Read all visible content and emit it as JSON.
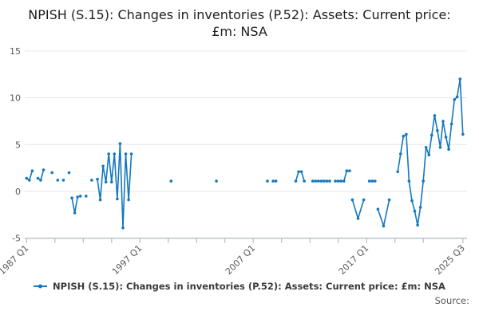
{
  "title": "NPISH (S.15): Changes in inventories (P.52): Assets: Current price: £m: NSA",
  "legend": {
    "series_label": "NPISH (S.15): Changes in inventories (P.52): Assets: Current price: £m: NSA"
  },
  "source_label": "Source:",
  "chart_data": {
    "type": "line",
    "title": "NPISH (S.15): Changes in inventories (P.52): Assets: Current price: £m: NSA",
    "xlabel": "",
    "ylabel": "",
    "unit": "£m",
    "x_start": "1987 Q1",
    "x_end": "2025 Q3",
    "ylim": [
      -5,
      15
    ],
    "yticks": [
      15,
      10,
      5,
      0,
      -5
    ],
    "xticks": [
      "1987 Q1",
      "1997 Q1",
      "2007 Q1",
      "2017 Q1",
      "2025 Q3"
    ],
    "grid": "horizontal",
    "legend_position": "bottom",
    "colors": {
      "series": "#1478BE",
      "grid": "#E6E6E6",
      "axis": "#B7C2CC",
      "tick_text": "#595959"
    },
    "segments": [
      {
        "points": [
          [
            "1987 Q1",
            1.4
          ],
          [
            "1987 Q2",
            1.2
          ],
          [
            "1987 Q3",
            2.2
          ]
        ]
      },
      {
        "points": [
          [
            "1988 Q1",
            1.4
          ],
          [
            "1988 Q2",
            1.2
          ],
          [
            "1988 Q3",
            2.3
          ]
        ]
      },
      {
        "points": [
          [
            "1989 Q2",
            2.0
          ]
        ]
      },
      {
        "points": [
          [
            "1989 Q4",
            1.2
          ]
        ]
      },
      {
        "points": [
          [
            "1990 Q2",
            1.2
          ]
        ]
      },
      {
        "points": [
          [
            "1990 Q4",
            2.0
          ]
        ]
      },
      {
        "points": [
          [
            "1991 Q1",
            -0.7
          ],
          [
            "1991 Q2",
            -2.3
          ],
          [
            "1991 Q3",
            -0.6
          ]
        ]
      },
      {
        "points": [
          [
            "1991 Q4",
            -0.5
          ]
        ]
      },
      {
        "points": [
          [
            "1992 Q2",
            -0.5
          ]
        ]
      },
      {
        "points": [
          [
            "1992 Q4",
            1.2
          ]
        ]
      },
      {
        "points": [
          [
            "1993 Q2",
            1.3
          ],
          [
            "1993 Q3",
            -0.9
          ],
          [
            "1993 Q4",
            2.7
          ],
          [
            "1994 Q1",
            1.0
          ],
          [
            "1994 Q2",
            4.0
          ],
          [
            "1994 Q3",
            1.0
          ],
          [
            "1994 Q4",
            4.0
          ],
          [
            "1995 Q1",
            -0.8
          ],
          [
            "1995 Q2",
            5.1
          ],
          [
            "1995 Q3",
            -3.9
          ],
          [
            "1995 Q4",
            4.0
          ],
          [
            "1996 Q1",
            -0.9
          ],
          [
            "1996 Q2",
            4.0
          ]
        ]
      },
      {
        "points": [
          [
            "1999 Q4",
            1.1
          ]
        ]
      },
      {
        "points": [
          [
            "2003 Q4",
            1.1
          ]
        ]
      },
      {
        "points": [
          [
            "2008 Q2",
            1.1
          ]
        ]
      },
      {
        "points": [
          [
            "2008 Q4",
            1.1
          ],
          [
            "2009 Q1",
            1.1
          ]
        ]
      },
      {
        "points": [
          [
            "2010 Q4",
            1.1
          ],
          [
            "2011 Q1",
            2.1
          ],
          [
            "2011 Q2",
            2.1
          ],
          [
            "2011 Q3",
            1.1
          ]
        ]
      },
      {
        "points": [
          [
            "2012 Q2",
            1.1
          ],
          [
            "2012 Q3",
            1.1
          ],
          [
            "2012 Q4",
            1.1
          ],
          [
            "2013 Q1",
            1.1
          ],
          [
            "2013 Q2",
            1.1
          ],
          [
            "2013 Q3",
            1.1
          ],
          [
            "2013 Q4",
            1.1
          ]
        ]
      },
      {
        "points": [
          [
            "2014 Q2",
            1.1
          ],
          [
            "2014 Q3",
            1.1
          ],
          [
            "2014 Q4",
            1.1
          ],
          [
            "2015 Q1",
            1.1
          ],
          [
            "2015 Q2",
            2.2
          ],
          [
            "2015 Q3",
            2.2
          ]
        ]
      },
      {
        "points": [
          [
            "2015 Q4",
            -0.9
          ],
          [
            "2016 Q2",
            -2.9
          ],
          [
            "2016 Q4",
            -0.9
          ]
        ]
      },
      {
        "points": [
          [
            "2017 Q2",
            1.1
          ],
          [
            "2017 Q3",
            1.1
          ],
          [
            "2017 Q4",
            1.1
          ]
        ]
      },
      {
        "points": [
          [
            "2018 Q1",
            -1.9
          ],
          [
            "2018 Q3",
            -3.7
          ],
          [
            "2019 Q1",
            -0.9
          ]
        ]
      },
      {
        "points": [
          [
            "2019 Q4",
            2.1
          ],
          [
            "2020 Q1",
            4.0
          ],
          [
            "2020 Q2",
            5.9
          ],
          [
            "2020 Q3",
            6.1
          ],
          [
            "2020 Q4",
            1.1
          ],
          [
            "2021 Q1",
            -1.0
          ],
          [
            "2021 Q2",
            -2.1
          ],
          [
            "2021 Q3",
            -3.6
          ],
          [
            "2021 Q4",
            -1.7
          ],
          [
            "2022 Q1",
            1.1
          ],
          [
            "2022 Q2",
            4.7
          ],
          [
            "2022 Q3",
            3.9
          ],
          [
            "2022 Q4",
            6.0
          ],
          [
            "2023 Q1",
            8.1
          ],
          [
            "2023 Q2",
            6.5
          ],
          [
            "2023 Q3",
            4.7
          ],
          [
            "2023 Q4",
            7.5
          ],
          [
            "2024 Q1",
            5.8
          ],
          [
            "2024 Q2",
            4.5
          ],
          [
            "2024 Q3",
            7.2
          ],
          [
            "2024 Q4",
            9.8
          ],
          [
            "2025 Q1",
            10.1
          ],
          [
            "2025 Q2",
            12.0
          ],
          [
            "2025 Q3",
            6.1
          ]
        ]
      }
    ]
  }
}
